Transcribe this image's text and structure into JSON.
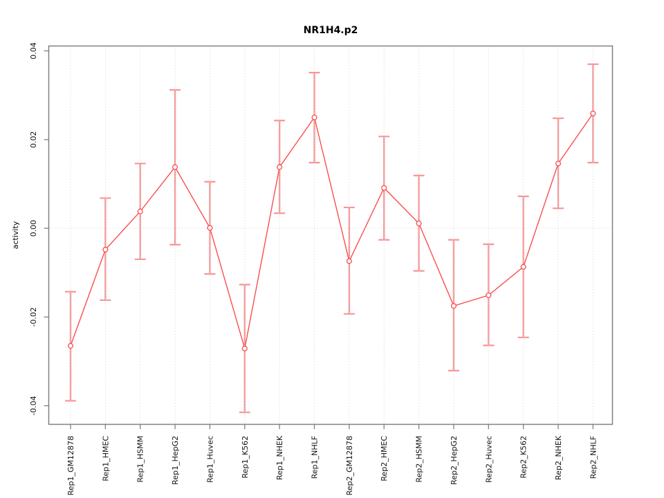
{
  "title": "NR1H4.p2",
  "chart_data": {
    "type": "line",
    "title": "NR1H4.p2",
    "xlabel": "",
    "ylabel": "activity",
    "ylim": [
      -0.0442,
      0.0411
    ],
    "yticks": [
      0.04,
      0.02,
      0.0,
      -0.02,
      -0.04
    ],
    "ytick_labels": [
      "0.04",
      "0.02",
      "0.00",
      "-0.02",
      "-0.04"
    ],
    "grid": {
      "vertical": "dotted line at every category",
      "horizontal": "dotted line at 0.00"
    },
    "legend": "none",
    "categories": [
      "Rep1_GM12878",
      "Rep1_HMEC",
      "Rep1_HSMM",
      "Rep1_HepG2",
      "Rep1_Huvec",
      "Rep1_K562",
      "Rep1_NHEK",
      "Rep1_NHLF",
      "Rep2_GM12878",
      "Rep2_HMEC",
      "Rep2_HSMM",
      "Rep2_HepG2",
      "Rep2_Huvec",
      "Rep2_K562",
      "Rep2_NHEK",
      "Rep2_NHLF"
    ],
    "series": [
      {
        "name": "activity",
        "marker": "open-circle",
        "values": [
          -0.0265,
          -0.0048,
          0.0038,
          0.0138,
          0.0001,
          -0.0271,
          0.0138,
          0.025,
          -0.0074,
          0.0091,
          0.0011,
          -0.0175,
          -0.0151,
          -0.0087,
          0.0146,
          0.0259
        ],
        "upper": [
          -0.0143,
          0.0068,
          0.0146,
          0.0312,
          0.0105,
          -0.0127,
          0.0243,
          0.0351,
          0.0047,
          0.0207,
          0.0119,
          -0.0026,
          -0.0036,
          0.0072,
          0.0248,
          0.037
        ],
        "lower": [
          -0.0389,
          -0.0162,
          -0.007,
          -0.0037,
          -0.0103,
          -0.0415,
          0.0034,
          0.0148,
          -0.0193,
          -0.0026,
          -0.0096,
          -0.0321,
          -0.0264,
          -0.0246,
          0.0045,
          0.0148
        ]
      }
    ],
    "colors": {
      "line": "#fa4d4d",
      "marker": "#fa4d4d",
      "errorbar": "#f79595",
      "grid": "#d8d8d8",
      "box": "#808080",
      "text": "#111111",
      "background": "#ffffff"
    }
  }
}
